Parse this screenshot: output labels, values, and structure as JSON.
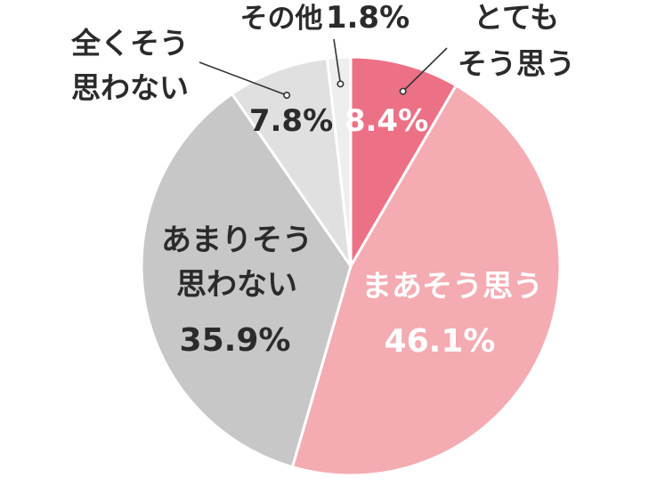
{
  "chart_data": {
    "type": "pie",
    "start_angle": "12 o'clock",
    "direction": "clockwise",
    "slices": [
      {
        "label_lines": [
          "とても",
          "そう思う"
        ],
        "value": 8.4,
        "value_text": "8.4%",
        "color": "#ec7186"
      },
      {
        "label_lines": [
          "まあそう思う"
        ],
        "value": 46.1,
        "value_text": "46.1%",
        "color": "#f4abb2"
      },
      {
        "label_lines": [
          "あまりそう",
          "思わない"
        ],
        "value": 35.9,
        "value_text": "35.9%",
        "color": "#c7c7c7"
      },
      {
        "label_lines": [
          "全くそう",
          "思わない"
        ],
        "value": 7.8,
        "value_text": "7.8%",
        "color": "#e0e0e0"
      },
      {
        "label_lines": [
          "その他"
        ],
        "value": 1.8,
        "value_text": "1.8%",
        "color": "#eeeeee"
      }
    ]
  }
}
